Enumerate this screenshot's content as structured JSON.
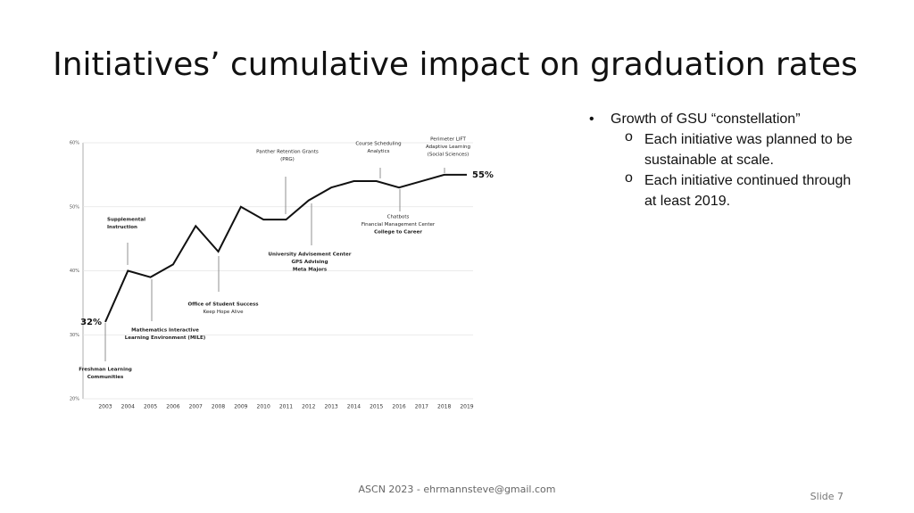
{
  "title": "Initiatives’ cumulative impact on graduation rates",
  "chart_data": {
    "type": "line",
    "categories": [
      "2003",
      "2004",
      "2005",
      "2006",
      "2007",
      "2008",
      "2009",
      "2010",
      "2011",
      "2012",
      "2013",
      "2014",
      "2015",
      "2016",
      "2017",
      "2018",
      "2019"
    ],
    "values": [
      32,
      40,
      39,
      41,
      47,
      43,
      50,
      48,
      48,
      51,
      53,
      54,
      54,
      53,
      54,
      55,
      55
    ],
    "value_labels": [
      "32%",
      null,
      null,
      null,
      null,
      null,
      null,
      null,
      null,
      null,
      null,
      null,
      null,
      null,
      null,
      null,
      "55%"
    ],
    "color": "#111111",
    "ylim": [
      20,
      60
    ],
    "yticks": [
      {
        "value": 20,
        "label": "20%"
      },
      {
        "value": 30,
        "label": "30%"
      },
      {
        "value": 40,
        "label": "40%"
      },
      {
        "value": 50,
        "label": "50%"
      },
      {
        "value": 60,
        "label": "60%"
      }
    ],
    "grid": true,
    "annotations": [
      {
        "lines": [
          "Freshman Learning",
          "Communities"
        ]
      },
      {
        "lines": [
          "Supplemental",
          "Instruction"
        ]
      },
      {
        "lines": [
          "Mathematics Interactive",
          "Learning Environment (MILE)"
        ]
      },
      {
        "lines": [
          "Office of Student Success",
          "Keep Hope Alive"
        ]
      },
      {
        "lines": [
          "Panther Retention Grants",
          "(PRG)"
        ]
      },
      {
        "lines": [
          "University Advisement Center",
          "GPS Advising",
          "Meta Majors"
        ]
      },
      {
        "lines": [
          "Course Scheduling",
          "Analytics"
        ]
      },
      {
        "lines": [
          "Chatbots",
          "Financial Management Center",
          "College to Career"
        ]
      },
      {
        "lines": [
          "Perimeter LIFT",
          "Adaptive Learning",
          "(Social Sciences)"
        ]
      }
    ]
  },
  "bullets": [
    {
      "text": "Growth of GSU “constellation”",
      "sub": [
        "Each initiative was planned to be sustainable at scale.",
        "Each initiative continued through at least 2019."
      ]
    }
  ],
  "footer": "ASCN 2023 - ehrmannsteve@gmail.com",
  "slide_number": "Slide 7"
}
